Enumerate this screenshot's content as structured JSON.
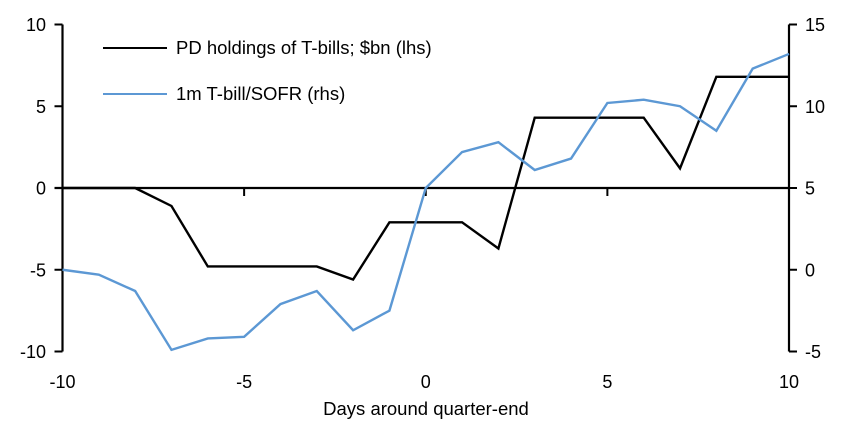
{
  "chart_data": {
    "type": "line",
    "title": "",
    "xlabel": "Days around quarter-end",
    "grid": false,
    "legend_position": "top-left-inside",
    "x": [
      -10,
      -9,
      -8,
      -7,
      -6,
      -5,
      -4,
      -3,
      -2,
      -1,
      0,
      1,
      2,
      3,
      4,
      5,
      6,
      7,
      8,
      9,
      10
    ],
    "series": [
      {
        "name": "PD holdings of T-bills; $bn (lhs)",
        "axis": "left",
        "color": "#000000",
        "values": [
          0,
          0,
          0,
          -1.1,
          -4.8,
          -4.8,
          -4.8,
          -4.8,
          -5.6,
          -2.1,
          -2.1,
          -2.1,
          -3.7,
          4.3,
          4.3,
          4.3,
          4.3,
          1.2,
          6.8,
          6.8,
          6.8
        ]
      },
      {
        "name": "1m T-bill/SOFR (rhs)",
        "axis": "right",
        "color": "#5C98D4",
        "values": [
          0,
          -0.3,
          -1.3,
          -4.9,
          -4.2,
          -4.1,
          -2.1,
          -1.3,
          -3.7,
          -2.5,
          5.0,
          7.2,
          7.8,
          6.1,
          6.8,
          10.2,
          10.4,
          10.0,
          8.5,
          12.3,
          13.2
        ]
      }
    ],
    "axes": {
      "left": {
        "range": [
          -10,
          10
        ],
        "ticks": [
          10,
          5,
          0,
          -5,
          -10
        ],
        "tick_labels": [
          "10",
          "5",
          "0",
          "-5",
          "-10"
        ]
      },
      "right": {
        "range": [
          -5,
          15
        ],
        "ticks": [
          15,
          10,
          5,
          0,
          -5
        ],
        "tick_labels": [
          "15",
          "10",
          "5",
          "0",
          "-5"
        ]
      },
      "x": {
        "range": [
          -10,
          10
        ],
        "ticks": [
          -10,
          -5,
          0,
          5,
          10
        ],
        "tick_labels": [
          "-10",
          "-5",
          "0",
          "5",
          "10"
        ],
        "inner_tick_days": [
          -5,
          0,
          5
        ]
      }
    },
    "zero_line": true,
    "axis_color": "#000000"
  }
}
